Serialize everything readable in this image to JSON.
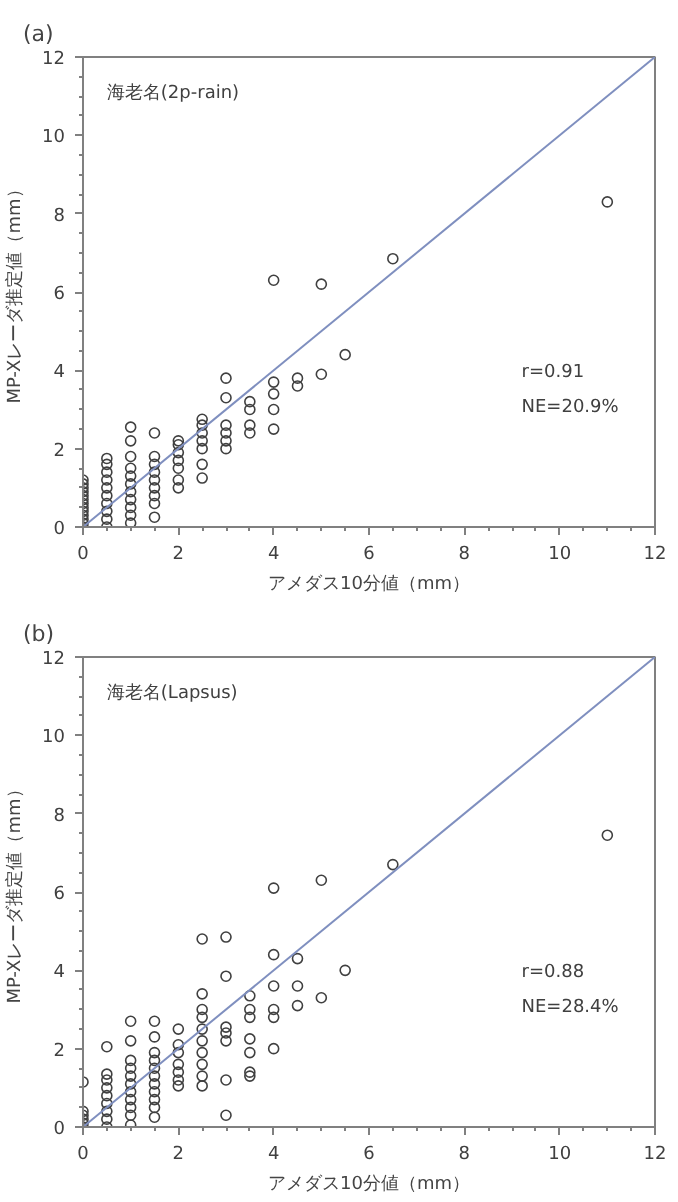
{
  "chart_data": [
    {
      "type": "scatter",
      "title": "(a)",
      "xlabel": "アメダス10分値（mm）",
      "ylabel": "MP-Xレーダ推定値（mm）",
      "annotations": [
        "海老名(2p-rain)",
        "r=0.91",
        "NE=20.9%"
      ],
      "xlim": [
        0,
        12
      ],
      "ylim": [
        0,
        12
      ],
      "xticks": [
        0,
        2,
        4,
        6,
        8,
        10,
        12
      ],
      "yticks": [
        0,
        2,
        4,
        6,
        8,
        10,
        12
      ],
      "grid": false,
      "series": [
        {
          "type": "scatter",
          "marker": "circle",
          "color": "#404040",
          "x": [
            0,
            0,
            0,
            0,
            0,
            0,
            0,
            0,
            0,
            0,
            0,
            0,
            0,
            0.5,
            0.5,
            0.5,
            0.5,
            0.5,
            0.5,
            0.5,
            0.5,
            0.5,
            0.5,
            1,
            1,
            1,
            1,
            1,
            1,
            1,
            1,
            1,
            1,
            1,
            1.5,
            1.5,
            1.5,
            1.5,
            1.5,
            1.5,
            1.5,
            1.5,
            1.5,
            2,
            2,
            2,
            2,
            2,
            2,
            2,
            2.5,
            2.5,
            2.5,
            2.5,
            2.5,
            2.5,
            2.5,
            3,
            3,
            3,
            3,
            3,
            3,
            3.5,
            3.5,
            3.5,
            3.5,
            4,
            4,
            4,
            4,
            4,
            4.5,
            4.5,
            5,
            5,
            5.5,
            6.5,
            11
          ],
          "values": [
            0,
            0.1,
            0.2,
            0.3,
            0.4,
            0.5,
            0.6,
            0.7,
            0.8,
            0.9,
            1.0,
            1.1,
            1.2,
            0,
            0.2,
            0.4,
            0.6,
            0.8,
            1.0,
            1.2,
            1.4,
            1.6,
            1.75,
            0.1,
            0.3,
            0.5,
            0.7,
            0.9,
            1.1,
            1.3,
            1.5,
            1.8,
            2.2,
            2.55,
            0.25,
            0.6,
            0.8,
            1.0,
            1.2,
            1.4,
            1.6,
            1.8,
            2.4,
            1.0,
            1.2,
            1.5,
            1.7,
            1.9,
            2.1,
            2.2,
            1.25,
            1.6,
            2.0,
            2.2,
            2.4,
            2.6,
            2.75,
            2.0,
            2.2,
            2.4,
            2.6,
            3.3,
            3.8,
            2.4,
            2.6,
            3.0,
            3.2,
            2.5,
            3.0,
            3.4,
            3.7,
            6.3,
            3.6,
            3.8,
            3.9,
            6.2,
            4.4,
            6.85,
            8.3
          ]
        },
        {
          "type": "line",
          "line_style": "solid",
          "color": "#7f8fbf",
          "x": [
            0,
            12
          ],
          "values": [
            0,
            12
          ]
        }
      ]
    },
    {
      "type": "scatter",
      "title": "(b)",
      "xlabel": "アメダス10分値（mm）",
      "ylabel": "MP-Xレーダ推定値（mm）",
      "annotations": [
        "海老名(Lapsus)",
        "r=0.88",
        "NE=28.4%"
      ],
      "xlim": [
        0,
        12
      ],
      "ylim": [
        0,
        12
      ],
      "xticks": [
        0,
        2,
        4,
        6,
        8,
        10,
        12
      ],
      "yticks": [
        0,
        2,
        4,
        6,
        8,
        10,
        12
      ],
      "grid": false,
      "series": [
        {
          "type": "scatter",
          "marker": "circle",
          "color": "#404040",
          "x": [
            0,
            0,
            0,
            0,
            0,
            0,
            0.5,
            0.5,
            0.5,
            0.5,
            0.5,
            0.5,
            0.5,
            0.5,
            0.5,
            1,
            1,
            1,
            1,
            1,
            1,
            1,
            1,
            1,
            1,
            1,
            1.5,
            1.5,
            1.5,
            1.5,
            1.5,
            1.5,
            1.5,
            1.5,
            1.5,
            1.5,
            1.5,
            2,
            2,
            2,
            2,
            2,
            2,
            2,
            2.5,
            2.5,
            2.5,
            2.5,
            2.5,
            2.5,
            2.5,
            2.5,
            2.5,
            2.5,
            3,
            3,
            3,
            3,
            3,
            3,
            3,
            3.5,
            3.5,
            3.5,
            3.5,
            3.5,
            3.5,
            3.5,
            4,
            4,
            4,
            4,
            4,
            4,
            4.5,
            4.5,
            4.5,
            5,
            5,
            5.5,
            6.5,
            11
          ],
          "values": [
            0,
            0.1,
            0.2,
            0.3,
            0.4,
            1.15,
            0,
            0.2,
            0.4,
            0.6,
            0.8,
            1.0,
            1.2,
            1.35,
            2.05,
            0.05,
            0.3,
            0.5,
            0.7,
            0.9,
            1.1,
            1.3,
            1.5,
            1.7,
            2.2,
            2.7,
            0.25,
            0.5,
            0.7,
            0.9,
            1.1,
            1.3,
            1.5,
            1.7,
            1.9,
            2.3,
            2.7,
            1.05,
            1.2,
            1.4,
            1.6,
            1.9,
            2.1,
            2.5,
            1.05,
            1.3,
            1.6,
            1.9,
            2.2,
            2.5,
            2.8,
            3.0,
            3.4,
            4.8,
            0.3,
            1.2,
            2.2,
            2.4,
            2.55,
            3.85,
            4.85,
            1.3,
            1.4,
            1.9,
            2.25,
            2.8,
            3.0,
            3.35,
            2.0,
            2.8,
            3.0,
            3.6,
            4.4,
            6.1,
            3.1,
            3.6,
            4.3,
            3.3,
            6.3,
            4.0,
            6.7,
            7.45
          ]
        },
        {
          "type": "line",
          "line_style": "solid",
          "color": "#7f8fbf",
          "x": [
            0,
            12
          ],
          "values": [
            0,
            12
          ]
        }
      ]
    }
  ]
}
